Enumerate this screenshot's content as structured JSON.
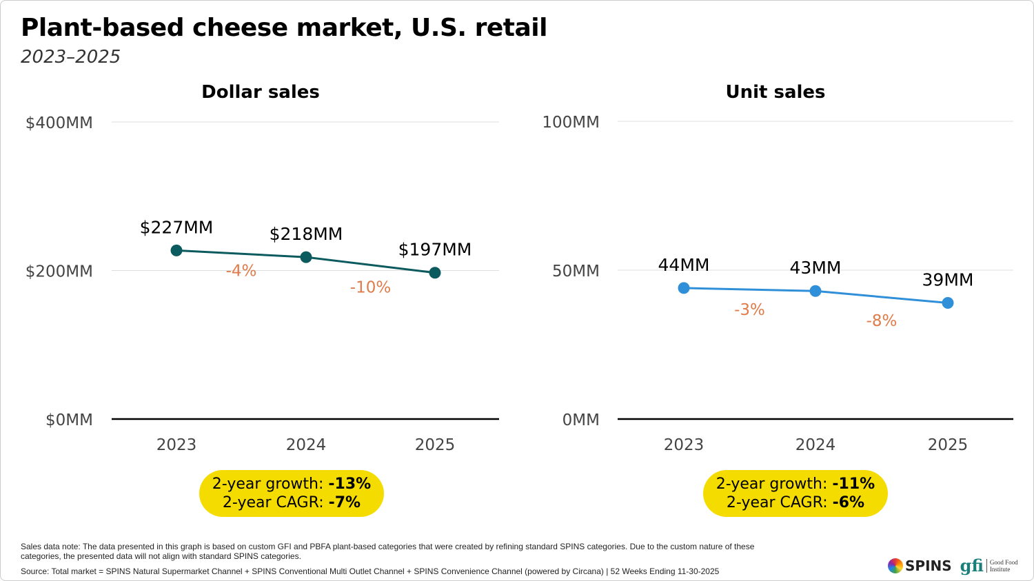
{
  "title": "Plant-based cheese market, U.S. retail",
  "subtitle": "2023–2025",
  "chart_data": [
    {
      "type": "line",
      "title": "Dollar sales",
      "categories": [
        "2023",
        "2024",
        "2025"
      ],
      "values": [
        227,
        218,
        197
      ],
      "data_labels": [
        "$227MM",
        "$218MM",
        "$197MM"
      ],
      "change_labels": [
        "-4%",
        "-10%"
      ],
      "yticks": [
        0,
        200,
        400
      ],
      "ytick_labels": [
        "$0MM",
        "$200MM",
        "$400MM"
      ],
      "ylim": [
        0,
        400
      ],
      "grid": true,
      "color": "#0b5a5e",
      "change_color": "#e07b4a",
      "summary": {
        "growth_label": "2-year growth:",
        "growth": "-13%",
        "cagr_label": "2-year CAGR:",
        "cagr": "-7%"
      }
    },
    {
      "type": "line",
      "title": "Unit sales",
      "categories": [
        "2023",
        "2024",
        "2025"
      ],
      "values": [
        44,
        43,
        39
      ],
      "data_labels": [
        "44MM",
        "43MM",
        "39MM"
      ],
      "change_labels": [
        "-3%",
        "-8%"
      ],
      "yticks": [
        0,
        50,
        100
      ],
      "ytick_labels": [
        "0MM",
        "50MM",
        "100MM"
      ],
      "ylim": [
        0,
        100
      ],
      "grid": true,
      "color": "#2f8fd8",
      "change_color": "#e07b4a",
      "summary": {
        "growth_label": "2-year growth:",
        "growth": "-11%",
        "cagr_label": "2-year CAGR:",
        "cagr": "-6%"
      }
    }
  ],
  "footer": {
    "note": "Sales data note: The data presented in this graph is based on custom GFI and PBFA plant-based categories that were created by refining standard SPINS categories. Due to the custom nature of these categories, the presented data will not align with standard SPINS categories.",
    "source": "Source: Total market = SPINS Natural Supermarket Channel + SPINS Conventional Multi Outlet Channel + SPINS Convenience Channel (powered by Circana) | 52 Weeks Ending 11-30-2025"
  },
  "logos": {
    "spins": "SPINS",
    "gfi": "gfi",
    "gfi_name": "Good Food Institute"
  },
  "badge_color": "#f5dc00"
}
